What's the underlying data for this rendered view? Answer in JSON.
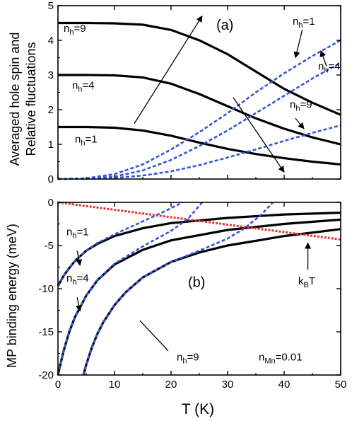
{
  "chart_data": [
    {
      "type": "line",
      "panel_label": "(a)",
      "ylabel_line1": "Averaged hole spin and",
      "ylabel_line2": "Relative fluctuations",
      "xlim": [
        0,
        50
      ],
      "ylim": [
        0,
        5
      ],
      "x_ticks": [
        0,
        10,
        20,
        30,
        40,
        50
      ],
      "y_ticks": [
        0,
        1,
        2,
        3,
        4,
        5
      ],
      "y_tick_labels": [
        "0",
        "1",
        "2",
        "3",
        "4",
        "5"
      ],
      "grid": false,
      "series": [
        {
          "style": "solid",
          "color": "#000000",
          "x": [
            0,
            5,
            10,
            15,
            20,
            25,
            30,
            35,
            40,
            45,
            50
          ],
          "y": [
            4.5,
            4.5,
            4.49,
            4.45,
            4.3,
            4.0,
            3.6,
            3.1,
            2.6,
            2.2,
            1.85
          ]
        },
        {
          "style": "solid",
          "color": "#000000",
          "x": [
            0,
            5,
            10,
            15,
            20,
            25,
            30,
            35,
            40,
            45,
            50
          ],
          "y": [
            3.0,
            3.0,
            2.99,
            2.93,
            2.75,
            2.45,
            2.1,
            1.75,
            1.45,
            1.2,
            1.0
          ]
        },
        {
          "style": "solid",
          "color": "#000000",
          "x": [
            0,
            5,
            10,
            15,
            20,
            25,
            30,
            35,
            40,
            45,
            50
          ],
          "y": [
            1.5,
            1.5,
            1.48,
            1.4,
            1.25,
            1.05,
            0.87,
            0.72,
            0.6,
            0.5,
            0.42
          ]
        },
        {
          "style": "dashed",
          "color": "#3355dd",
          "x": [
            0,
            5,
            10,
            15,
            20,
            25,
            30,
            35,
            40,
            45,
            50
          ],
          "y": [
            0,
            0.02,
            0.14,
            0.42,
            0.85,
            1.35,
            1.9,
            2.5,
            3.05,
            3.55,
            4.0
          ]
        },
        {
          "style": "dashed",
          "color": "#3355dd",
          "x": [
            0,
            5,
            10,
            15,
            20,
            25,
            30,
            35,
            40,
            45,
            50
          ],
          "y": [
            0,
            0.01,
            0.07,
            0.25,
            0.55,
            0.95,
            1.4,
            1.9,
            2.4,
            2.9,
            3.35
          ]
        },
        {
          "style": "dashed",
          "color": "#3355dd",
          "x": [
            0,
            5,
            10,
            15,
            20,
            25,
            30,
            35,
            40,
            45,
            50
          ],
          "y": [
            0,
            0.005,
            0.03,
            0.1,
            0.22,
            0.4,
            0.62,
            0.85,
            1.1,
            1.33,
            1.55
          ]
        }
      ],
      "annotations": [
        {
          "name": "nh9-left",
          "main": "n",
          "sub": "h",
          "rest": "=9",
          "x": 1,
          "y": 4.25
        },
        {
          "name": "nh4-left",
          "main": "n",
          "sub": "h",
          "rest": "=4",
          "x": 2.5,
          "y": 2.6
        },
        {
          "name": "nh1-left",
          "main": "n",
          "sub": "h",
          "rest": "=1",
          "x": 3,
          "y": 1.05
        },
        {
          "name": "nh1-right",
          "main": "n",
          "sub": "h",
          "rest": "=1",
          "x": 41.5,
          "y": 4.45
        },
        {
          "name": "nh4-right",
          "main": "n",
          "sub": "h",
          "rest": "=4",
          "x": 46,
          "y": 3.15
        },
        {
          "name": "nh9-right",
          "main": "n",
          "sub": "h",
          "rest": "=9",
          "x": 41,
          "y": 2.05
        }
      ],
      "arrows": [
        {
          "name": "trend-arrow-up",
          "x1": 13.5,
          "y1": 1.6,
          "x2": 25.5,
          "y2": 4.7,
          "head": true
        },
        {
          "name": "trend-arrow-down",
          "x1": 31,
          "y1": 2.35,
          "x2": 40,
          "y2": 0.2,
          "head": true
        },
        {
          "name": "pointer-nh1",
          "x1": 43.2,
          "y1": 4.3,
          "x2": 42,
          "y2": 3.5,
          "head": true
        },
        {
          "name": "pointer-nh4",
          "x1": 47.5,
          "y1": 3.25,
          "x2": 46.5,
          "y2": 3.7,
          "head": true
        },
        {
          "name": "pointer-nh9",
          "x1": 42,
          "y1": 1.75,
          "x2": 43.5,
          "y2": 1.45,
          "head": true
        }
      ]
    },
    {
      "type": "line",
      "panel_label": "(b)",
      "ylabel": "MP binding energy (meV)",
      "xlabel": "T (K)",
      "xlim": [
        0,
        50
      ],
      "ylim": [
        -20,
        0
      ],
      "x_ticks": [
        0,
        10,
        20,
        30,
        40,
        50
      ],
      "x_tick_labels": [
        "0",
        "10",
        "20",
        "30",
        "40",
        "50"
      ],
      "y_ticks": [
        -20,
        -15,
        -10,
        -5,
        0
      ],
      "y_tick_labels": [
        "-20",
        "-15",
        "-10",
        "-5",
        "0"
      ],
      "grid": false,
      "series": [
        {
          "style": "solid",
          "color": "#000000",
          "x": [
            0,
            1,
            2,
            3,
            5,
            7,
            10,
            15,
            20,
            30,
            40,
            50
          ],
          "y": [
            -9.7,
            -8.5,
            -7.6,
            -6.8,
            -5.6,
            -4.8,
            -3.9,
            -3.0,
            -2.4,
            -1.8,
            -1.4,
            -1.2
          ]
        },
        {
          "style": "solid",
          "color": "#000000",
          "x": [
            0,
            1,
            2,
            3,
            5,
            7,
            10,
            15,
            20,
            30,
            40,
            50
          ],
          "y": [
            -20,
            -17.2,
            -15.0,
            -13.3,
            -10.8,
            -9.0,
            -7.2,
            -5.5,
            -4.4,
            -3.2,
            -2.5,
            -2.0
          ]
        },
        {
          "style": "solid",
          "color": "#000000",
          "x": [
            4.5,
            5,
            6,
            7,
            8,
            10,
            12,
            15,
            20,
            25,
            30,
            40,
            50
          ],
          "y": [
            -20,
            -18.8,
            -16.8,
            -15.2,
            -13.9,
            -11.9,
            -10.4,
            -8.7,
            -6.9,
            -5.8,
            -5.0,
            -3.9,
            -3.1
          ]
        },
        {
          "style": "dashed",
          "color": "#3355dd",
          "x": [
            0,
            1,
            2,
            3,
            5,
            7,
            10,
            13,
            16,
            19,
            22
          ],
          "y": [
            -9.7,
            -8.5,
            -7.6,
            -6.8,
            -5.6,
            -4.7,
            -3.7,
            -2.8,
            -1.9,
            -1.0,
            0
          ]
        },
        {
          "style": "dashed",
          "color": "#3355dd",
          "x": [
            0,
            1,
            2,
            3,
            5,
            7,
            10,
            15,
            20,
            23,
            25.5
          ],
          "y": [
            -20,
            -17.2,
            -15.0,
            -13.3,
            -10.8,
            -9.0,
            -7.1,
            -5.1,
            -3.3,
            -1.9,
            0
          ]
        },
        {
          "style": "dashed",
          "color": "#3355dd",
          "x": [
            4.5,
            5,
            6,
            7,
            8,
            10,
            12,
            15,
            20,
            25,
            30,
            33,
            36,
            38
          ],
          "y": [
            -20,
            -18.8,
            -16.8,
            -15.2,
            -13.9,
            -11.9,
            -10.4,
            -8.7,
            -6.9,
            -5.6,
            -4.2,
            -3.0,
            -1.4,
            0
          ]
        },
        {
          "style": "dotted",
          "color": "#e23333",
          "x": [
            0,
            50
          ],
          "y": [
            0,
            -4.3
          ]
        }
      ],
      "annotations": [
        {
          "name": "nh1-b",
          "main": "n",
          "sub": "h",
          "rest": "=1",
          "x": 1.5,
          "y": -3.8
        },
        {
          "name": "nh4-b",
          "main": "n",
          "sub": "h",
          "rest": "=4",
          "x": 1.5,
          "y": -9.2
        },
        {
          "name": "nh9-b",
          "main": "n",
          "sub": "h",
          "rest": "=9",
          "x": 21,
          "y": -18.3
        },
        {
          "name": "kbt-label",
          "main": "k",
          "sub": "B",
          "rest": "T",
          "x": 42.5,
          "y": -9.5
        },
        {
          "name": "nmn-label",
          "main": "n",
          "sub": "Mn",
          "rest": "=0.01",
          "x": 35.5,
          "y": -18.3
        }
      ],
      "panel_label_pos": {
        "x": 23,
        "y": -9.8
      },
      "arrows": [
        {
          "name": "pointer-nh1-b",
          "x1": 3.4,
          "y1": -5.6,
          "x2": 3.9,
          "y2": -7.3,
          "head": true
        },
        {
          "name": "pointer-nh4-b",
          "x1": 3.4,
          "y1": -11.0,
          "x2": 3.9,
          "y2": -12.6,
          "head": true
        },
        {
          "name": "pointer-nh9-b",
          "x1": 19.5,
          "y1": -17.2,
          "x2": 14.5,
          "y2": -13.7,
          "head": false
        },
        {
          "name": "pointer-kbt",
          "x1": 44.2,
          "y1": -7.8,
          "x2": 44.2,
          "y2": -4.7,
          "head": true
        }
      ]
    }
  ]
}
